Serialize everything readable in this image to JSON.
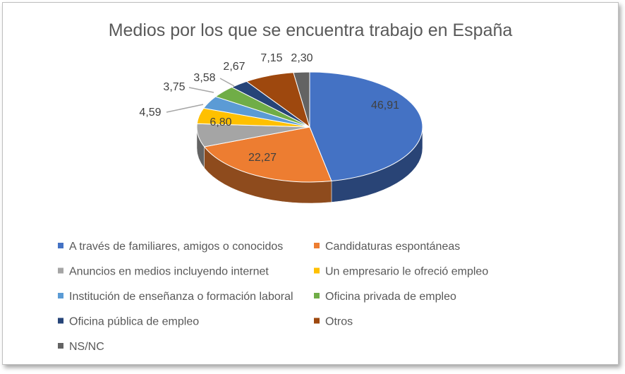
{
  "chart_data": {
    "type": "pie",
    "style": "3d",
    "title": "Medios por los que se encuentra trabajo en España",
    "categories": [
      "A través de familiares, amigos o conocidos",
      "Candidaturas espontáneas",
      "Anuncios en medios incluyendo internet",
      "Un empresario le ofreció empleo",
      "Institución de enseñanza o formación laboral",
      "Oficina privada de empleo",
      "Oficina pública de empleo",
      "Otros",
      "NS/NC"
    ],
    "values": [
      46.91,
      22.27,
      6.8,
      4.59,
      3.75,
      3.58,
      2.67,
      7.15,
      2.3
    ],
    "data_labels": [
      "46,91",
      "22,27",
      "6,80",
      "4,59",
      "3,75",
      "3,58",
      "2,67",
      "7,15",
      "2,30"
    ],
    "colors": [
      "#4472c4",
      "#ed7d31",
      "#a5a5a5",
      "#ffc000",
      "#5b9bd5",
      "#70ad47",
      "#264478",
      "#9e480e",
      "#636363"
    ],
    "legend_position": "bottom"
  }
}
